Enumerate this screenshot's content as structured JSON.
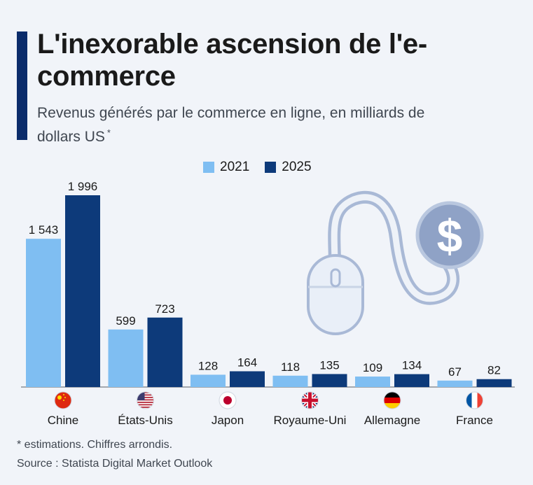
{
  "header": {
    "title": "L'inexorable ascension de l'e-commerce",
    "subtitle": "Revenus générés par le commerce en ligne, en milliards de dollars US",
    "subtitle_mark": "*"
  },
  "footer": {
    "note": "* estimations. Chiffres arrondis.",
    "source": "Source : Statista Digital Market Outlook"
  },
  "colors": {
    "series_2021": "#7fbef2",
    "series_2025": "#0d3a7a",
    "accent": "#0b2c6b",
    "illustration": "#a9b9d6"
  },
  "chart_data": {
    "type": "bar",
    "categories": [
      "Chine",
      "États-Unis",
      "Japon",
      "Royaume-Uni",
      "Allemagne",
      "France"
    ],
    "category_icons": [
      "china-flag-icon",
      "usa-flag-icon",
      "japan-flag-icon",
      "uk-flag-icon",
      "germany-flag-icon",
      "france-flag-icon"
    ],
    "series": [
      {
        "name": "2021",
        "values": [
          1543,
          599,
          128,
          118,
          109,
          67
        ],
        "labels": [
          "1 543",
          "599",
          "128",
          "118",
          "109",
          "67"
        ]
      },
      {
        "name": "2025",
        "values": [
          1996,
          723,
          164,
          135,
          134,
          82
        ],
        "labels": [
          "1 996",
          "723",
          "164",
          "135",
          "134",
          "82"
        ]
      }
    ],
    "ylim": [
      0,
      2000
    ],
    "grid": false,
    "legend": "top-center"
  }
}
